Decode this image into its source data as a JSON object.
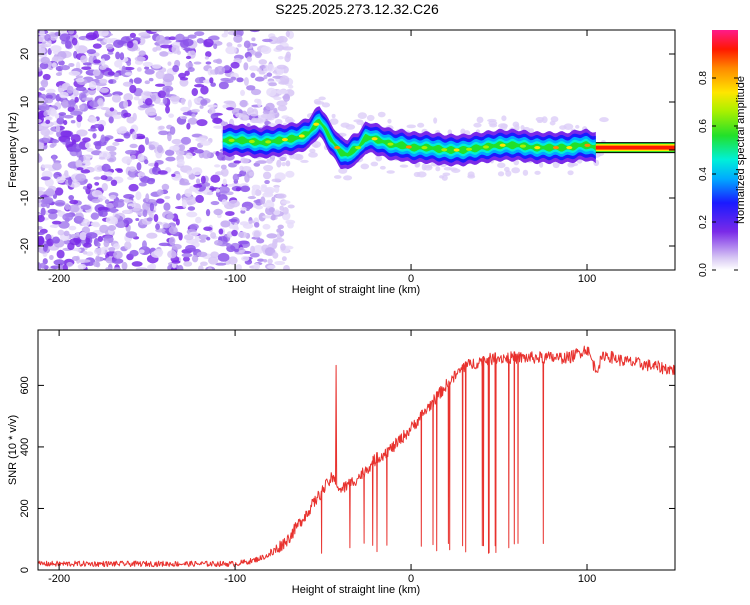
{
  "figure_title": "S225.2025.273.12.32.C26",
  "colors": {
    "snr_line": "#e8322e",
    "ridge": "#000000",
    "frame": "#000000"
  },
  "chart_data": [
    {
      "type": "heatmap",
      "xlabel": "Height of straight line (km)",
      "ylabel": "Frequency (Hz)",
      "xlim": [
        -212,
        150
      ],
      "ylim": [
        -25,
        25
      ],
      "x_ticks": [
        -200,
        -100,
        0,
        100
      ],
      "y_ticks": [
        -20,
        -10,
        0,
        10,
        20
      ],
      "colorbar": {
        "label": "Normalized spectral amplitude",
        "range": [
          0,
          1
        ],
        "ticks": [
          "0.0",
          "0.2",
          "0.4",
          "0.6",
          "0.8"
        ],
        "tick_values": [
          0.0,
          0.2,
          0.4,
          0.6,
          0.8
        ]
      },
      "noise_region_km": [
        -212,
        -80
      ],
      "ridge": {
        "x": [
          -107,
          -95,
          -85,
          -75,
          -65,
          -58,
          -55,
          -52,
          -49,
          -46,
          -43,
          -40,
          -36,
          -33,
          -30,
          -26,
          -22,
          -18,
          -14,
          -10,
          -5,
          0,
          10,
          20,
          30,
          40,
          50,
          60,
          70,
          80,
          90,
          95,
          100,
          105,
          110,
          150
        ],
        "y": [
          2,
          2,
          1.5,
          2,
          2.5,
          3.5,
          5,
          6,
          4.5,
          2.5,
          1,
          -0.5,
          -1,
          0,
          0.5,
          2.5,
          2.5,
          2,
          1.5,
          1,
          1,
          0.5,
          0.5,
          0,
          0,
          0.5,
          1,
          1,
          0.5,
          0.5,
          0.5,
          1,
          1,
          0.5,
          0.5,
          0.5
        ]
      },
      "strong_tone": {
        "x_start": 105,
        "x_end": 150,
        "frequency": 0.5
      }
    },
    {
      "type": "line",
      "xlabel": "Height of straight line (km)",
      "ylabel": "SNR (10 * v/v)",
      "xlim": [
        -212,
        150
      ],
      "ylim": [
        0,
        780
      ],
      "x_ticks": [
        -200,
        -100,
        0,
        100
      ],
      "y_ticks": [
        0,
        200,
        400,
        600
      ],
      "series": [
        {
          "name": "SNR",
          "envelope_x": [
            -212,
            -100,
            -90,
            -80,
            -70,
            -60,
            -50,
            -45,
            -40,
            -30,
            -20,
            -10,
            0,
            10,
            20,
            30,
            40,
            50,
            60,
            70,
            80,
            90,
            100,
            105,
            110,
            120,
            130,
            140,
            150
          ],
          "envelope_y": [
            20,
            20,
            30,
            50,
            100,
            180,
            260,
            300,
            260,
            300,
            360,
            400,
            460,
            530,
            600,
            660,
            680,
            690,
            690,
            690,
            690,
            690,
            720,
            650,
            700,
            680,
            670,
            660,
            650
          ],
          "spike": {
            "x": -42.5,
            "y": 665
          },
          "dropout_region_km": [
            -60,
            85
          ],
          "dropout_floor": 50
        }
      ]
    }
  ]
}
